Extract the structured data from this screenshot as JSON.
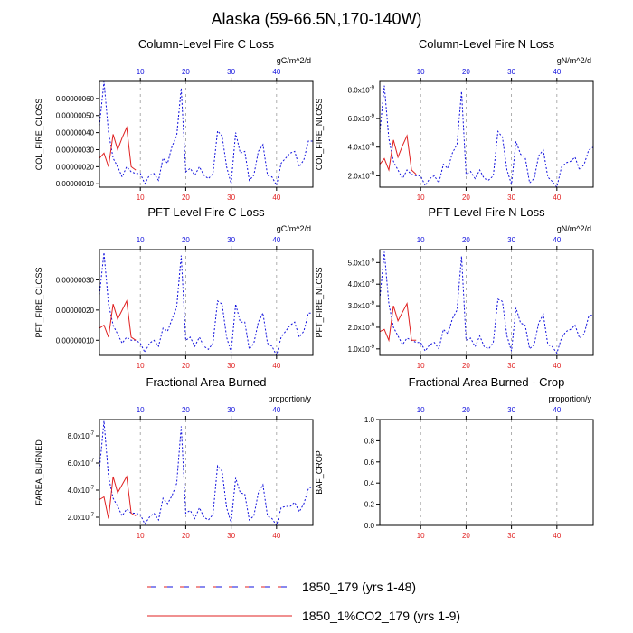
{
  "page": {
    "title": "Alaska (59-66.5N,170-140W)"
  },
  "colors": {
    "series_main": "#1010dd",
    "series_co2": "#e02020",
    "top_axis": "#1010dd",
    "bottom_axis": "#e02020",
    "gridline": "#999999",
    "frame": "#000000"
  },
  "legend": {
    "entries": [
      {
        "label": "1850_179 (yrs 1-48)",
        "style": "dashed"
      },
      {
        "label": "1850_1%CO2_179 (yrs 1-9)",
        "style": "solid"
      }
    ]
  },
  "chart_data": [
    {
      "type": "line",
      "title": "Column-Level Fire C Loss",
      "units": "gC/m^2/d",
      "ylabel": "COL_FIRE_CLOSS",
      "xlim": [
        1,
        48
      ],
      "ylim": [
        8e-08,
        7e-07
      ],
      "y_ticks": [
        "0.00000010",
        "0.00000020",
        "0.00000030",
        "0.00000040",
        "0.00000050",
        "0.00000060"
      ],
      "top_x_ticks": [
        "10",
        "20",
        "30",
        "40"
      ],
      "bottom_x_ticks": [
        "10",
        "20",
        "30",
        "40"
      ],
      "grid": "vertical dashed at 10,20,30,40",
      "series": [
        {
          "values": [
            4.4e-07,
            7e-07,
            4e-07,
            2.5e-07,
            2e-07,
            1.4e-07,
            2e-07,
            1.7e-07,
            1.6e-07,
            1.6e-07,
            1e-07,
            1.5e-07,
            1.6e-07,
            1.2e-07,
            2.5e-07,
            2.2e-07,
            3.2e-07,
            3.8e-07,
            6.6e-07,
            1.7e-07,
            1.9e-07,
            1.5e-07,
            2e-07,
            1.5e-07,
            1.3e-07,
            1.6e-07,
            4.1e-07,
            3.8e-07,
            2e-07,
            1e-07,
            4e-07,
            2.8e-07,
            2.9e-07,
            1.2e-07,
            1.5e-07,
            2.9e-07,
            3.3e-07,
            1.5e-07,
            1.4e-07,
            9e-08,
            2.2e-07,
            2.5e-07,
            2.8e-07,
            2.9e-07,
            2e-07,
            2.4e-07,
            3.5e-07,
            3.5e-07
          ]
        },
        {
          "values": [
            2.5e-07,
            2.8e-07,
            2e-07,
            3.9e-07,
            3e-07,
            3.7e-07,
            4.3e-07,
            2e-07,
            1.8e-07
          ]
        }
      ]
    },
    {
      "type": "line",
      "title": "Column-Level Fire N Loss",
      "units": "gN/m^2/d",
      "ylabel": "COL_FIRE_NLOSS",
      "xlim": [
        1,
        48
      ],
      "ylim": [
        1.2e-09,
        8.6e-09
      ],
      "y_ticks": [
        "2.0x10-9",
        "4.0x10-9",
        "6.0x10-9",
        "8.0x10-9"
      ],
      "top_x_ticks": [
        "10",
        "20",
        "30",
        "40"
      ],
      "bottom_x_ticks": [
        "10",
        "20",
        "30",
        "40"
      ],
      "grid": "vertical dashed at 10,20,30,40",
      "series": [
        {
          "values": [
            5e-09,
            8.3e-09,
            4.6e-09,
            3e-09,
            2.4e-09,
            1.8e-09,
            2.4e-09,
            2.1e-09,
            2e-09,
            2e-09,
            1.3e-09,
            1.8e-09,
            2e-09,
            1.5e-09,
            2.8e-09,
            2.5e-09,
            3.6e-09,
            4.2e-09,
            7.9e-09,
            2.1e-09,
            2.3e-09,
            1.8e-09,
            2.4e-09,
            1.8e-09,
            1.7e-09,
            2e-09,
            5.1e-09,
            4.7e-09,
            2.4e-09,
            1.4e-09,
            4.4e-09,
            3.5e-09,
            3.3e-09,
            1.5e-09,
            1.8e-09,
            3.4e-09,
            3.8e-09,
            1.9e-09,
            1.6e-09,
            1.2e-09,
            2.6e-09,
            2.9e-09,
            3e-09,
            3.3e-09,
            2.4e-09,
            2.8e-09,
            3.8e-09,
            4e-09
          ]
        },
        {
          "values": [
            2.8e-09,
            3.2e-09,
            2.4e-09,
            4.5e-09,
            3.3e-09,
            4.1e-09,
            4.8e-09,
            2.4e-09,
            2.1e-09
          ]
        }
      ]
    },
    {
      "type": "line",
      "title": "PFT-Level Fire C Loss",
      "units": "gC/m^2/d",
      "ylabel": "PFT_FIRE_CLOSS",
      "xlim": [
        1,
        48
      ],
      "ylim": [
        5e-08,
        4e-07
      ],
      "y_ticks": [
        "0.00000010",
        "0.00000020",
        "0.00000030"
      ],
      "top_x_ticks": [
        "10",
        "20",
        "30",
        "40"
      ],
      "bottom_x_ticks": [
        "10",
        "20",
        "30",
        "40"
      ],
      "grid": "vertical dashed at 10,20,30,40",
      "series": [
        {
          "values": [
            2.5e-07,
            3.9e-07,
            2.2e-07,
            1.5e-07,
            1.2e-07,
            9e-08,
            1.1e-07,
            1e-07,
            1e-07,
            9e-08,
            6e-08,
            9e-08,
            1e-07,
            8e-08,
            1.4e-07,
            1.3e-07,
            1.7e-07,
            2.1e-07,
            3.8e-07,
            1e-07,
            1.1e-07,
            8e-08,
            1.1e-07,
            8e-08,
            7e-08,
            9e-08,
            2.3e-07,
            2.2e-07,
            1.1e-07,
            6e-08,
            2.2e-07,
            1.6e-07,
            1.6e-07,
            7e-08,
            9e-08,
            1.6e-07,
            1.9e-07,
            9e-08,
            8e-08,
            5e-08,
            1.1e-07,
            1.3e-07,
            1.5e-07,
            1.6e-07,
            1.1e-07,
            1.3e-07,
            1.9e-07,
            1.9e-07
          ]
        },
        {
          "values": [
            1.4e-07,
            1.5e-07,
            1.1e-07,
            2.2e-07,
            1.7e-07,
            2e-07,
            2.3e-07,
            1.1e-07,
            1e-07
          ]
        }
      ]
    },
    {
      "type": "line",
      "title": "PFT-Level Fire N Loss",
      "units": "gN/m^2/d",
      "ylabel": "PFT_FIRE_NLOSS",
      "xlim": [
        1,
        48
      ],
      "ylim": [
        7e-10,
        5.6e-09
      ],
      "y_ticks": [
        "1.0x10-9",
        "2.0x10-9",
        "3.0x10-9",
        "4.0x10-9",
        "5.0x10-9"
      ],
      "top_x_ticks": [
        "10",
        "20",
        "30",
        "40"
      ],
      "bottom_x_ticks": [
        "10",
        "20",
        "30",
        "40"
      ],
      "grid": "vertical dashed at 10,20,30,40",
      "series": [
        {
          "values": [
            3.3e-09,
            5.5e-09,
            3.1e-09,
            2e-09,
            1.6e-09,
            1.2e-09,
            1.5e-09,
            1.4e-09,
            1.3e-09,
            1.3e-09,
            9e-10,
            1.2e-09,
            1.3e-09,
            1e-09,
            1.9e-09,
            1.7e-09,
            2.4e-09,
            2.8e-09,
            5.3e-09,
            1.4e-09,
            1.5e-09,
            1.1e-09,
            1.6e-09,
            1.1e-09,
            1e-09,
            1.3e-09,
            3.3e-09,
            3.2e-09,
            1.6e-09,
            9e-10,
            2.9e-09,
            2.2e-09,
            2.1e-09,
            1e-09,
            1.2e-09,
            2.2e-09,
            2.6e-09,
            1.2e-09,
            1.1e-09,
            8e-10,
            1.5e-09,
            1.8e-09,
            1.9e-09,
            2.1e-09,
            1.5e-09,
            1.7e-09,
            2.5e-09,
            2.6e-09
          ]
        },
        {
          "values": [
            1.8e-09,
            1.9e-09,
            1.4e-09,
            3e-09,
            2.3e-09,
            2.7e-09,
            3.1e-09,
            1.4e-09,
            1.4e-09
          ]
        }
      ]
    },
    {
      "type": "line",
      "title": "Fractional Area Burned",
      "units": "proportion/y",
      "ylabel": "FAREA_BURNED",
      "xlim": [
        1,
        48
      ],
      "ylim": [
        1.4e-07,
        9.2e-07
      ],
      "y_ticks": [
        "2.0x10-7",
        "4.0x10-7",
        "6.0x10-7",
        "8.0x10-7"
      ],
      "top_x_ticks": [
        "10",
        "20",
        "30",
        "40"
      ],
      "bottom_x_ticks": [
        "10",
        "20",
        "30",
        "40"
      ],
      "grid": "vertical dashed at 10,20,30,40",
      "series": [
        {
          "values": [
            5.5e-07,
            9.1e-07,
            5e-07,
            3.4e-07,
            2.8e-07,
            2.1e-07,
            2.6e-07,
            2.3e-07,
            2.3e-07,
            2.2e-07,
            1.5e-07,
            2e-07,
            2.3e-07,
            1.8e-07,
            3.4e-07,
            3e-07,
            3.6e-07,
            4.5e-07,
            8.7e-07,
            2.3e-07,
            2.5e-07,
            1.9e-07,
            2.7e-07,
            2e-07,
            1.8e-07,
            2.2e-07,
            5.8e-07,
            5.4e-07,
            2.7e-07,
            1.6e-07,
            4.9e-07,
            3.8e-07,
            3.7e-07,
            1.8e-07,
            2.1e-07,
            3.8e-07,
            4.4e-07,
            2.1e-07,
            1.9e-07,
            1.4e-07,
            2.7e-07,
            2.8e-07,
            2.8e-07,
            3.1e-07,
            2.4e-07,
            3e-07,
            4.1e-07,
            4.3e-07
          ]
        },
        {
          "values": [
            3.3e-07,
            3.5e-07,
            1.9e-07,
            5e-07,
            3.8e-07,
            4.4e-07,
            5e-07,
            2.3e-07,
            2.1e-07
          ]
        }
      ]
    },
    {
      "type": "line",
      "title": "Fractional Area Burned - Crop",
      "units": "proportion/y",
      "ylabel": "BAF_CROP",
      "xlim": [
        1,
        48
      ],
      "ylim": [
        0,
        1
      ],
      "y_ticks": [
        "0.0",
        "0.2",
        "0.4",
        "0.6",
        "0.8",
        "1.0"
      ],
      "top_x_ticks": [
        "10",
        "20",
        "30",
        "40"
      ],
      "bottom_x_ticks": [
        "10",
        "20",
        "30",
        "40"
      ],
      "grid": "vertical dashed at 10,20,30,40",
      "series": []
    }
  ]
}
